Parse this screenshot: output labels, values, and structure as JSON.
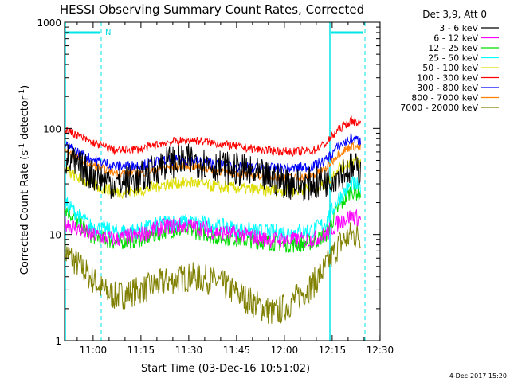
{
  "chart_data": {
    "type": "line",
    "title": "HESSI Observing Summary Count Rates, Corrected",
    "xlabel": "Start Time (03-Dec-16 10:51:02)",
    "ylabel_main": "Corrected Count Rate (s",
    "ylabel_sup1": "-1",
    "ylabel_mid": " detector",
    "ylabel_sup2": "-1",
    "ylabel_end": ")",
    "yscale": "log",
    "ylim": [
      1,
      1000
    ],
    "xlim_minutes": [
      0,
      99
    ],
    "x_ticks": [
      "11:00",
      "11:15",
      "11:30",
      "11:45",
      "12:00",
      "12:15",
      "12:30"
    ],
    "x_tick_minutes": [
      8.97,
      23.97,
      38.97,
      53.97,
      68.97,
      83.97,
      98.97
    ],
    "y_ticks": [
      "1",
      "10",
      "100",
      "1000"
    ],
    "y_tick_values": [
      1,
      10,
      100,
      1000
    ],
    "legend_header": "Det 3,9, Att 0",
    "legend_position": "right",
    "annotations": {
      "night_marker": "N",
      "footer_date": "4-Dec-2017 15:20"
    },
    "series": [
      {
        "name": "3 - 6 keV",
        "color": "#000000",
        "points": [
          [
            0,
            52
          ],
          [
            8,
            38
          ],
          [
            16,
            30
          ],
          [
            24,
            34
          ],
          [
            32,
            48
          ],
          [
            40,
            50
          ],
          [
            48,
            44
          ],
          [
            56,
            40
          ],
          [
            64,
            34
          ],
          [
            72,
            30
          ],
          [
            78,
            30
          ],
          [
            82,
            32
          ],
          [
            86,
            38
          ],
          [
            90,
            42
          ],
          [
            93,
            40
          ]
        ]
      },
      {
        "name": "6 - 12 keV",
        "color": "#ff00ff",
        "points": [
          [
            0,
            13
          ],
          [
            8,
            10
          ],
          [
            16,
            9
          ],
          [
            24,
            10
          ],
          [
            32,
            12
          ],
          [
            40,
            12
          ],
          [
            48,
            10.5
          ],
          [
            56,
            10
          ],
          [
            64,
            9
          ],
          [
            72,
            8.8
          ],
          [
            78,
            9
          ],
          [
            82,
            10
          ],
          [
            86,
            13
          ],
          [
            90,
            15
          ],
          [
            93,
            14
          ]
        ]
      },
      {
        "name": "12 - 25 keV",
        "color": "#00dd00",
        "points": [
          [
            0,
            18
          ],
          [
            8,
            10
          ],
          [
            16,
            8.5
          ],
          [
            24,
            9
          ],
          [
            32,
            11
          ],
          [
            40,
            11
          ],
          [
            48,
            9.5
          ],
          [
            56,
            9
          ],
          [
            64,
            8.5
          ],
          [
            72,
            8
          ],
          [
            78,
            8.5
          ],
          [
            82,
            10
          ],
          [
            86,
            18
          ],
          [
            90,
            26
          ],
          [
            93,
            24
          ]
        ]
      },
      {
        "name": "25 - 50 keV",
        "color": "#00ffff",
        "points": [
          [
            0,
            20
          ],
          [
            8,
            12
          ],
          [
            16,
            10.5
          ],
          [
            24,
            11
          ],
          [
            32,
            13
          ],
          [
            40,
            13
          ],
          [
            48,
            12
          ],
          [
            56,
            11
          ],
          [
            64,
            10.5
          ],
          [
            72,
            10.5
          ],
          [
            78,
            11
          ],
          [
            82,
            13
          ],
          [
            86,
            22
          ],
          [
            90,
            30
          ],
          [
            93,
            28
          ]
        ]
      },
      {
        "name": "50 - 100 keV",
        "color": "#dddd00",
        "points": [
          [
            0,
            40
          ],
          [
            8,
            30
          ],
          [
            16,
            25
          ],
          [
            24,
            26
          ],
          [
            32,
            30
          ],
          [
            40,
            31
          ],
          [
            48,
            28
          ],
          [
            56,
            27
          ],
          [
            64,
            26
          ],
          [
            72,
            26
          ],
          [
            78,
            27
          ],
          [
            82,
            30
          ],
          [
            86,
            42
          ],
          [
            90,
            50
          ],
          [
            93,
            47
          ]
        ]
      },
      {
        "name": "100 - 300 keV",
        "color": "#ff0000",
        "points": [
          [
            0,
            98
          ],
          [
            8,
            75
          ],
          [
            16,
            62
          ],
          [
            24,
            64
          ],
          [
            32,
            74
          ],
          [
            40,
            78
          ],
          [
            48,
            72
          ],
          [
            56,
            66
          ],
          [
            64,
            62
          ],
          [
            72,
            60
          ],
          [
            78,
            62
          ],
          [
            82,
            72
          ],
          [
            86,
            98
          ],
          [
            90,
            118
          ],
          [
            93,
            112
          ]
        ]
      },
      {
        "name": "300 - 800 keV",
        "color": "#0000ff",
        "points": [
          [
            0,
            70
          ],
          [
            8,
            52
          ],
          [
            16,
            44
          ],
          [
            24,
            45
          ],
          [
            32,
            50
          ],
          [
            40,
            50
          ],
          [
            48,
            46
          ],
          [
            56,
            43
          ],
          [
            64,
            42
          ],
          [
            72,
            42
          ],
          [
            78,
            44
          ],
          [
            82,
            50
          ],
          [
            86,
            68
          ],
          [
            90,
            80
          ],
          [
            93,
            76
          ]
        ]
      },
      {
        "name": "800 - 7000 keV",
        "color": "#ff7f00",
        "points": [
          [
            0,
            62
          ],
          [
            8,
            46
          ],
          [
            16,
            38
          ],
          [
            24,
            38
          ],
          [
            32,
            43
          ],
          [
            40,
            44
          ],
          [
            48,
            40
          ],
          [
            56,
            37
          ],
          [
            64,
            35
          ],
          [
            72,
            34
          ],
          [
            78,
            36
          ],
          [
            82,
            42
          ],
          [
            86,
            58
          ],
          [
            90,
            68
          ],
          [
            93,
            66
          ]
        ]
      },
      {
        "name": "7000 - 20000 keV",
        "color": "#808000",
        "points": [
          [
            0,
            7
          ],
          [
            8,
            4
          ],
          [
            12,
            3
          ],
          [
            16,
            2.6
          ],
          [
            24,
            3
          ],
          [
            32,
            3.6
          ],
          [
            40,
            4
          ],
          [
            48,
            3.6
          ],
          [
            56,
            2.6
          ],
          [
            60,
            2.2
          ],
          [
            66,
            1.8
          ],
          [
            72,
            2.4
          ],
          [
            78,
            3.4
          ],
          [
            82,
            5
          ],
          [
            86,
            8
          ],
          [
            90,
            10
          ],
          [
            93,
            9.5
          ]
        ]
      }
    ]
  }
}
